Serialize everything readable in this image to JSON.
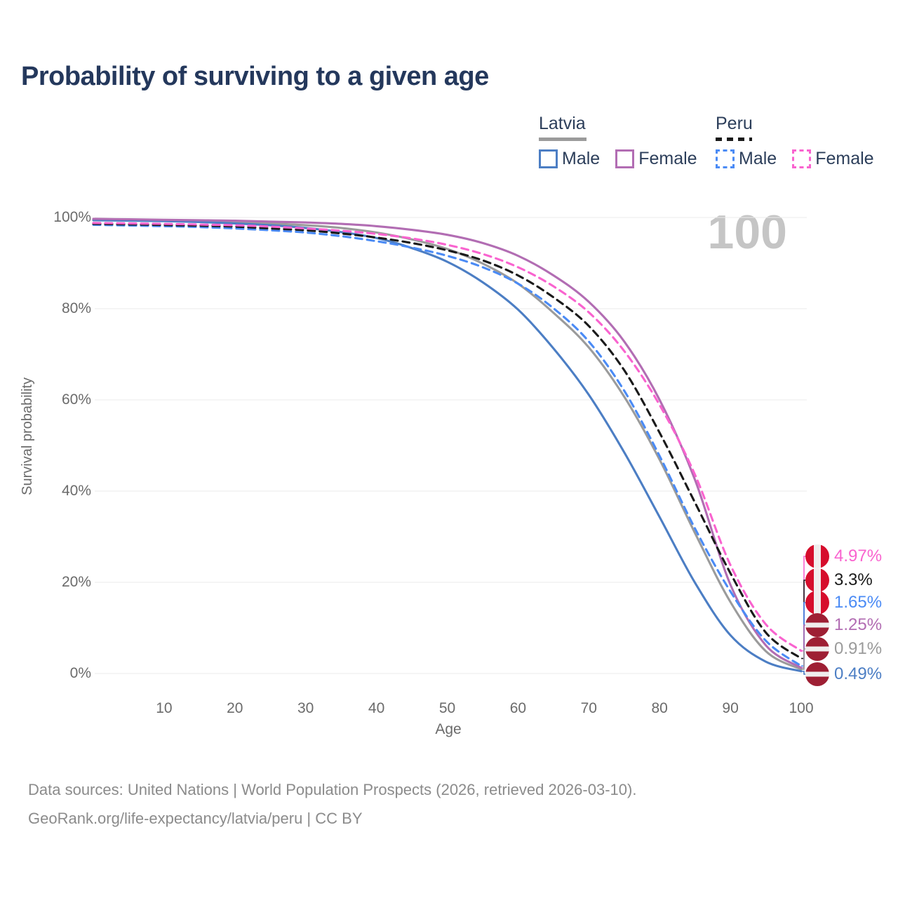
{
  "title": "Probability of surviving to a given age",
  "watermark_age": "100",
  "legend": {
    "groups": [
      {
        "country": "Latvia",
        "line_style": "solid",
        "swatch_color": "#9B9B9B",
        "items": [
          {
            "label": "Male",
            "color": "#4C7EC4"
          },
          {
            "label": "Female",
            "color": "#B26DB3"
          }
        ]
      },
      {
        "country": "Peru",
        "line_style": "dashed",
        "swatch_color": "#1A1A1A",
        "items": [
          {
            "label": "Male",
            "color": "#4B8BF5"
          },
          {
            "label": "Female",
            "color": "#F963CF"
          }
        ]
      }
    ]
  },
  "axes": {
    "y": {
      "label": "Survival probability",
      "ticks": [
        "100%",
        "80%",
        "60%",
        "40%",
        "20%",
        "0%"
      ]
    },
    "x": {
      "label": "Age",
      "ticks": [
        "10",
        "20",
        "30",
        "40",
        "50",
        "60",
        "70",
        "80",
        "90",
        "100"
      ]
    }
  },
  "end_labels": [
    {
      "value": "4.97%",
      "color": "#F963CF",
      "flag": "peru"
    },
    {
      "value": "3.3%",
      "color": "#1A1A1A",
      "flag": "peru"
    },
    {
      "value": "1.65%",
      "color": "#4B8BF5",
      "flag": "peru"
    },
    {
      "value": "1.25%",
      "color": "#B26DB3",
      "flag": "latvia"
    },
    {
      "value": "0.91%",
      "color": "#9B9B9B",
      "flag": "latvia"
    },
    {
      "value": "0.49%",
      "color": "#4C7EC4",
      "flag": "latvia"
    }
  ],
  "footer": {
    "line1": "Data sources: United Nations | World Population Prospects (2026, retrieved 2026-03-10).",
    "line2": "GeoRank.org/life-expectancy/latvia/peru | CC BY"
  },
  "chart_data": {
    "type": "line",
    "title": "Probability of surviving to a given age",
    "xlabel": "Age",
    "ylabel": "Survival probability",
    "xlim": [
      0,
      100
    ],
    "ylim": [
      0,
      100
    ],
    "grid": "horizontal",
    "legend_position": "top-right",
    "x": [
      0,
      5,
      10,
      15,
      20,
      25,
      30,
      35,
      40,
      45,
      50,
      55,
      60,
      65,
      70,
      75,
      80,
      85,
      90,
      95,
      100
    ],
    "series": [
      {
        "name": "Latvia",
        "sex": "all",
        "color": "#9B9B9B",
        "dashed": false,
        "end_value_pct": 0.91,
        "values": [
          99.5,
          99.45,
          99.35,
          99.2,
          99.0,
          98.7,
          98.3,
          97.7,
          96.7,
          95.2,
          93.1,
          89.9,
          85.5,
          79.1,
          71.5,
          60.7,
          46.9,
          30.8,
          15.7,
          4.9,
          0.91
        ]
      },
      {
        "name": "Latvia Male",
        "sex": "male",
        "color": "#4C7EC4",
        "dashed": false,
        "end_value_pct": 0.49,
        "values": [
          99.4,
          99.3,
          99.2,
          99.0,
          98.7,
          98.3,
          97.7,
          96.8,
          95.5,
          93.3,
          90.3,
          85.8,
          79.8,
          71.3,
          61.1,
          48.5,
          34.3,
          19.9,
          8.4,
          2.6,
          0.49
        ]
      },
      {
        "name": "Latvia Female",
        "sex": "female",
        "color": "#B26DB3",
        "dashed": false,
        "end_value_pct": 1.25,
        "values": [
          99.7,
          99.6,
          99.5,
          99.4,
          99.3,
          99.1,
          98.9,
          98.6,
          98.1,
          97.3,
          96.2,
          94.4,
          91.6,
          87.3,
          81.5,
          72.8,
          60.0,
          42.5,
          19.5,
          6.2,
          1.25
        ]
      },
      {
        "name": "Peru Male",
        "sex": "male",
        "color": "#4B8BF5",
        "dashed": true,
        "end_value_pct": 1.65,
        "values": [
          98.4,
          98.25,
          98.1,
          97.9,
          97.6,
          97.2,
          96.7,
          95.9,
          94.8,
          93.4,
          91.6,
          89.1,
          85.5,
          80.1,
          72.8,
          62.0,
          47.7,
          31.8,
          18.0,
          7.2,
          1.65
        ]
      },
      {
        "name": "Peru",
        "sex": "all",
        "color": "#1A1A1A",
        "dashed": true,
        "end_value_pct": 3.3,
        "values": [
          98.6,
          98.5,
          98.35,
          98.2,
          98.0,
          97.6,
          97.2,
          96.5,
          95.6,
          94.4,
          92.8,
          90.6,
          87.3,
          82.5,
          76.2,
          66.5,
          52.8,
          37.5,
          22.0,
          9.0,
          3.3
        ]
      },
      {
        "name": "Peru Female",
        "sex": "female",
        "color": "#F963CF",
        "dashed": true,
        "end_value_pct": 4.97,
        "values": [
          98.8,
          98.7,
          98.6,
          98.45,
          98.3,
          98.0,
          97.6,
          97.1,
          96.4,
          95.4,
          94.0,
          92.0,
          89.1,
          84.9,
          79.2,
          70.7,
          58.9,
          43.6,
          23.8,
          10.8,
          4.97
        ]
      }
    ]
  }
}
